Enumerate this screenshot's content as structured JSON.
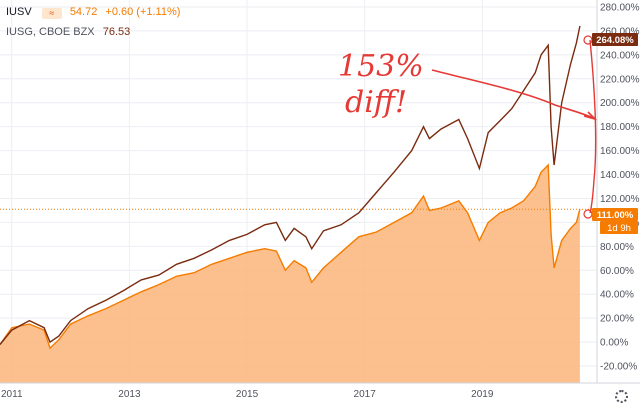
{
  "legend": {
    "row1": {
      "symbol": "IUSV",
      "price": "54.72",
      "change": "+0.60 (+1.11%)"
    },
    "row2": {
      "symbol": "IUSG, CBOE BZX",
      "price": "76.53"
    }
  },
  "price_tags": {
    "iusg": "264.08%",
    "iusv": "111.00%",
    "countdown": "1d 9h"
  },
  "annotation": {
    "line1": "153%",
    "line2": "diff!"
  },
  "colors": {
    "iusg_line": "#7a2b10",
    "iusv_line": "#f57c00",
    "iusv_fill": "#fbb57a",
    "annotation": "#e53935"
  },
  "chart_data": {
    "type": "area",
    "x_ticks": [
      "2011",
      "2013",
      "2015",
      "2017",
      "2019"
    ],
    "y_ticks": [
      "280.00%",
      "260.00%",
      "240.00%",
      "220.00%",
      "200.00%",
      "180.00%",
      "160.00%",
      "140.00%",
      "120.00%",
      "100.00%",
      "80.00%",
      "60.00%",
      "40.00%",
      "20.00%",
      "0.00%",
      "-20.00%"
    ],
    "ylim": [
      -30,
      290
    ],
    "xlim": [
      2010.8,
      2020.95
    ],
    "series": [
      {
        "name": "IUSG",
        "x": [
          2010.8,
          2011.0,
          2011.3,
          2011.55,
          2011.65,
          2011.8,
          2012.0,
          2012.3,
          2012.6,
          2012.9,
          2013.2,
          2013.5,
          2013.8,
          2014.1,
          2014.4,
          2014.7,
          2015.0,
          2015.3,
          2015.5,
          2015.65,
          2015.8,
          2016.0,
          2016.1,
          2016.3,
          2016.6,
          2016.9,
          2017.2,
          2017.5,
          2017.8,
          2018.0,
          2018.1,
          2018.3,
          2018.6,
          2018.75,
          2018.95,
          2019.1,
          2019.3,
          2019.5,
          2019.7,
          2019.9,
          2020.0,
          2020.12,
          2020.17,
          2020.22,
          2020.35,
          2020.5,
          2020.6,
          2020.66
        ],
        "values": [
          -2,
          10,
          18,
          12,
          0,
          5,
          18,
          28,
          35,
          43,
          52,
          56,
          65,
          70,
          77,
          85,
          90,
          98,
          100,
          85,
          95,
          88,
          78,
          93,
          98,
          108,
          125,
          142,
          160,
          180,
          170,
          178,
          186,
          170,
          145,
          175,
          185,
          195,
          210,
          225,
          240,
          248,
          180,
          148,
          200,
          232,
          250,
          264.08
        ]
      },
      {
        "name": "IUSV",
        "x": [
          2010.8,
          2011.0,
          2011.3,
          2011.55,
          2011.65,
          2011.8,
          2012.0,
          2012.3,
          2012.6,
          2012.9,
          2013.2,
          2013.5,
          2013.8,
          2014.1,
          2014.4,
          2014.7,
          2015.0,
          2015.3,
          2015.5,
          2015.65,
          2015.8,
          2016.0,
          2016.1,
          2016.3,
          2016.6,
          2016.9,
          2017.2,
          2017.5,
          2017.8,
          2018.0,
          2018.1,
          2018.3,
          2018.6,
          2018.75,
          2018.95,
          2019.1,
          2019.3,
          2019.5,
          2019.7,
          2019.9,
          2020.0,
          2020.12,
          2020.17,
          2020.22,
          2020.35,
          2020.5,
          2020.6,
          2020.66
        ],
        "values": [
          -2,
          12,
          15,
          10,
          -5,
          2,
          15,
          22,
          28,
          35,
          42,
          48,
          55,
          58,
          65,
          70,
          75,
          78,
          76,
          60,
          68,
          62,
          50,
          62,
          75,
          88,
          92,
          100,
          108,
          122,
          110,
          112,
          118,
          108,
          85,
          100,
          108,
          112,
          118,
          130,
          142,
          148,
          90,
          62,
          85,
          95,
          100,
          111.0
        ]
      }
    ]
  }
}
